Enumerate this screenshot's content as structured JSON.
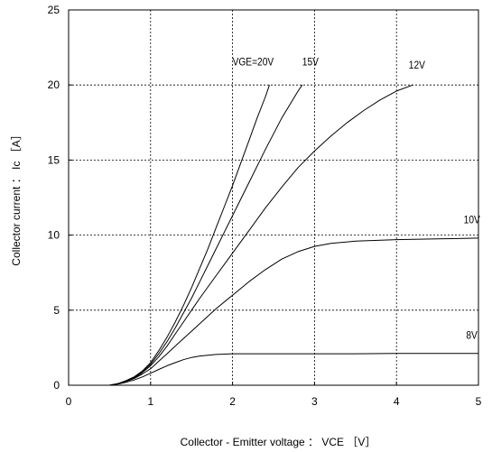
{
  "chart_data": {
    "type": "line",
    "title": "",
    "xlabel": "Collector - Emitter voltage ： VCE ［V］",
    "ylabel": "Collector current ： Ic ［A］",
    "xlim": [
      0,
      5
    ],
    "ylim": [
      0,
      25
    ],
    "xticks": [
      0,
      1,
      2,
      3,
      4,
      5
    ],
    "yticks": [
      0,
      5,
      10,
      15,
      20,
      25
    ],
    "grid": true,
    "series": [
      {
        "name": "VGE=20V",
        "points": [
          [
            0.5,
            0
          ],
          [
            0.6,
            0.1
          ],
          [
            0.7,
            0.3
          ],
          [
            0.8,
            0.55
          ],
          [
            0.9,
            0.95
          ],
          [
            1.0,
            1.5
          ],
          [
            1.1,
            2.3
          ],
          [
            1.2,
            3.2
          ],
          [
            1.3,
            4.2
          ],
          [
            1.4,
            5.3
          ],
          [
            1.5,
            6.5
          ],
          [
            1.6,
            7.8
          ],
          [
            1.7,
            9.1
          ],
          [
            1.8,
            10.5
          ],
          [
            1.9,
            11.9
          ],
          [
            2.0,
            13.3
          ],
          [
            2.1,
            14.8
          ],
          [
            2.2,
            16.3
          ],
          [
            2.3,
            17.8
          ],
          [
            2.4,
            19.2
          ],
          [
            2.45,
            20.0
          ]
        ]
      },
      {
        "name": "15V",
        "points": [
          [
            0.5,
            0
          ],
          [
            0.6,
            0.1
          ],
          [
            0.7,
            0.3
          ],
          [
            0.8,
            0.55
          ],
          [
            0.9,
            0.9
          ],
          [
            1.0,
            1.4
          ],
          [
            1.1,
            2.1
          ],
          [
            1.2,
            2.9
          ],
          [
            1.3,
            3.8
          ],
          [
            1.4,
            4.8
          ],
          [
            1.5,
            5.8
          ],
          [
            1.6,
            6.9
          ],
          [
            1.7,
            8.0
          ],
          [
            1.8,
            9.1
          ],
          [
            1.9,
            10.2
          ],
          [
            2.0,
            11.3
          ],
          [
            2.2,
            13.5
          ],
          [
            2.4,
            15.7
          ],
          [
            2.6,
            17.8
          ],
          [
            2.8,
            19.6
          ],
          [
            2.85,
            20.0
          ]
        ]
      },
      {
        "name": "12V",
        "points": [
          [
            0.5,
            0
          ],
          [
            0.6,
            0.1
          ],
          [
            0.7,
            0.28
          ],
          [
            0.8,
            0.5
          ],
          [
            0.9,
            0.85
          ],
          [
            1.0,
            1.3
          ],
          [
            1.1,
            1.9
          ],
          [
            1.2,
            2.6
          ],
          [
            1.3,
            3.4
          ],
          [
            1.4,
            4.2
          ],
          [
            1.5,
            5.0
          ],
          [
            1.6,
            5.8
          ],
          [
            1.8,
            7.3
          ],
          [
            2.0,
            8.8
          ],
          [
            2.2,
            10.3
          ],
          [
            2.4,
            11.8
          ],
          [
            2.6,
            13.2
          ],
          [
            2.8,
            14.5
          ],
          [
            3.0,
            15.6
          ],
          [
            3.2,
            16.6
          ],
          [
            3.4,
            17.5
          ],
          [
            3.6,
            18.3
          ],
          [
            3.8,
            19.0
          ],
          [
            4.0,
            19.6
          ],
          [
            4.2,
            20.0
          ]
        ]
      },
      {
        "name": "10V",
        "points": [
          [
            0.5,
            0
          ],
          [
            0.6,
            0.1
          ],
          [
            0.7,
            0.25
          ],
          [
            0.8,
            0.45
          ],
          [
            0.9,
            0.75
          ],
          [
            1.0,
            1.1
          ],
          [
            1.1,
            1.6
          ],
          [
            1.2,
            2.1
          ],
          [
            1.3,
            2.6
          ],
          [
            1.4,
            3.1
          ],
          [
            1.5,
            3.6
          ],
          [
            1.6,
            4.1
          ],
          [
            1.8,
            5.1
          ],
          [
            2.0,
            6.0
          ],
          [
            2.2,
            6.9
          ],
          [
            2.4,
            7.7
          ],
          [
            2.6,
            8.4
          ],
          [
            2.8,
            8.9
          ],
          [
            3.0,
            9.25
          ],
          [
            3.2,
            9.45
          ],
          [
            3.5,
            9.6
          ],
          [
            4.0,
            9.7
          ],
          [
            4.5,
            9.75
          ],
          [
            5.0,
            9.8
          ]
        ]
      },
      {
        "name": "8V",
        "points": [
          [
            0.5,
            0
          ],
          [
            0.6,
            0.08
          ],
          [
            0.7,
            0.2
          ],
          [
            0.8,
            0.35
          ],
          [
            0.9,
            0.55
          ],
          [
            1.0,
            0.8
          ],
          [
            1.1,
            1.05
          ],
          [
            1.2,
            1.3
          ],
          [
            1.3,
            1.5
          ],
          [
            1.4,
            1.7
          ],
          [
            1.5,
            1.85
          ],
          [
            1.6,
            1.95
          ],
          [
            1.8,
            2.05
          ],
          [
            2.0,
            2.1
          ],
          [
            2.5,
            2.1
          ],
          [
            3.0,
            2.1
          ],
          [
            3.5,
            2.1
          ],
          [
            4.0,
            2.12
          ],
          [
            4.5,
            2.12
          ],
          [
            5.0,
            2.12
          ]
        ]
      }
    ],
    "annotations": [
      {
        "text": "VGE=20V",
        "x": 2.0,
        "y": 21.3
      },
      {
        "text": "15V",
        "x": 2.85,
        "y": 21.3
      },
      {
        "text": "12V",
        "x": 4.15,
        "y": 21.1
      },
      {
        "text": "10V",
        "x": 4.82,
        "y": 10.8
      },
      {
        "text": "8V",
        "x": 4.85,
        "y": 3.1
      }
    ]
  }
}
